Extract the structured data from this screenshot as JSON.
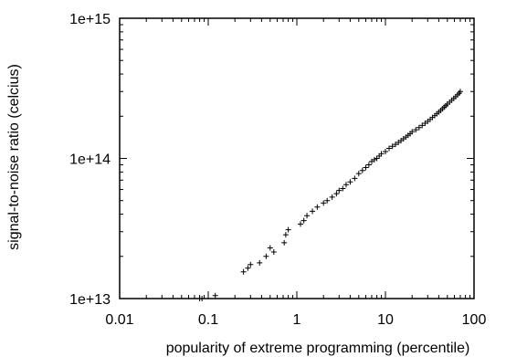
{
  "chart_data": {
    "type": "scatter",
    "title": "",
    "xlabel": "popularity of extreme programming  (percentile)",
    "ylabel": "signal-to-noise ratio (celcius)",
    "xscale": "log",
    "yscale": "log",
    "xlim": [
      0.01,
      100
    ],
    "ylim": [
      10000000000000.0,
      1000000000000000.0
    ],
    "grid": false,
    "legend": "none",
    "marker": "+",
    "marker_color": "#000000",
    "xticks": [
      {
        "value": 0.01,
        "label": "0.01"
      },
      {
        "value": 0.1,
        "label": "0.1"
      },
      {
        "value": 1,
        "label": "1"
      },
      {
        "value": 10,
        "label": "10"
      },
      {
        "value": 100,
        "label": "100"
      }
    ],
    "yticks": [
      {
        "value": 10000000000000.0,
        "label": "1e+13"
      },
      {
        "value": 100000000000000.0,
        "label": "1e+14"
      },
      {
        "value": 1000000000000000.0,
        "label": "1e+15"
      }
    ],
    "series": [
      {
        "points": [
          [
            0.08,
            10000000000000.0
          ],
          [
            0.085,
            10000000000000.0
          ],
          [
            0.12,
            10500000000000.0
          ],
          [
            0.25,
            15500000000000.0
          ],
          [
            0.28,
            16500000000000.0
          ],
          [
            0.3,
            17500000000000.0
          ],
          [
            0.38,
            18000000000000.0
          ],
          [
            0.45,
            20000000000000.0
          ],
          [
            0.5,
            23000000000000.0
          ],
          [
            0.55,
            21500000000000.0
          ],
          [
            0.72,
            25000000000000.0
          ],
          [
            0.75,
            28500000000000.0
          ],
          [
            0.8,
            31000000000000.0
          ],
          [
            1.1,
            34000000000000.0
          ],
          [
            1.2,
            36000000000000.0
          ],
          [
            1.3,
            39000000000000.0
          ],
          [
            1.5,
            42000000000000.0
          ],
          [
            1.7,
            45000000000000.0
          ],
          [
            2.0,
            48000000000000.0
          ],
          [
            2.2,
            50000000000000.0
          ],
          [
            2.5,
            53000000000000.0
          ],
          [
            2.8,
            56000000000000.0
          ],
          [
            3.0,
            59000000000000.0
          ],
          [
            3.3,
            61000000000000.0
          ],
          [
            3.6,
            65000000000000.0
          ],
          [
            4.0,
            68000000000000.0
          ],
          [
            4.5,
            72000000000000.0
          ],
          [
            5.0,
            78000000000000.0
          ],
          [
            5.5,
            82000000000000.0
          ],
          [
            6.0,
            86000000000000.0
          ],
          [
            6.5,
            90000000000000.0
          ],
          [
            7.0,
            95000000000000.0
          ],
          [
            7.5,
            98000000000000.0
          ],
          [
            8.0,
            100000000000000.0
          ],
          [
            8.5,
            104000000000000.0
          ],
          [
            9.0,
            108000000000000.0
          ],
          [
            10.0,
            112000000000000.0
          ],
          [
            11.0,
            118000000000000.0
          ],
          [
            12.0,
            122000000000000.0
          ],
          [
            13.0,
            126000000000000.0
          ],
          [
            14.0,
            130000000000000.0
          ],
          [
            15.0,
            134000000000000.0
          ],
          [
            16.0,
            138000000000000.0
          ],
          [
            17.0,
            142000000000000.0
          ],
          [
            18.0,
            146000000000000.0
          ],
          [
            19.0,
            150000000000000.0
          ],
          [
            20.0,
            155000000000000.0
          ],
          [
            22.0,
            160000000000000.0
          ],
          [
            24.0,
            166000000000000.0
          ],
          [
            26.0,
            172000000000000.0
          ],
          [
            28.0,
            178000000000000.0
          ],
          [
            30.0,
            184000000000000.0
          ],
          [
            32.0,
            190000000000000.0
          ],
          [
            34.0,
            196000000000000.0
          ],
          [
            36.0,
            202000000000000.0
          ],
          [
            38.0,
            208000000000000.0
          ],
          [
            40.0,
            214000000000000.0
          ],
          [
            42.0,
            220000000000000.0
          ],
          [
            44.0,
            226000000000000.0
          ],
          [
            46.0,
            232000000000000.0
          ],
          [
            48.0,
            238000000000000.0
          ],
          [
            50.0,
            244000000000000.0
          ],
          [
            53.0,
            252000000000000.0
          ],
          [
            56.0,
            260000000000000.0
          ],
          [
            59.0,
            268000000000000.0
          ],
          [
            62.0,
            276000000000000.0
          ],
          [
            65.0,
            284000000000000.0
          ],
          [
            68.0,
            292000000000000.0
          ],
          [
            70.0,
            300000000000000.0
          ]
        ]
      }
    ]
  }
}
